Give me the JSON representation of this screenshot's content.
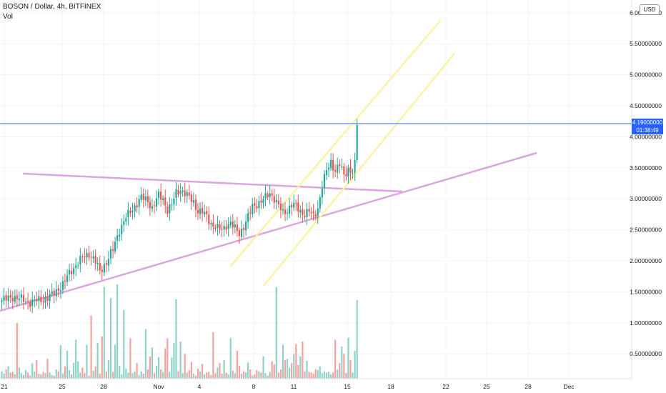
{
  "header": {
    "symbol_line": "BOSON / Dollar, 4h, BITFINEX",
    "volume_label": "Vol"
  },
  "currency_button": "USD",
  "last_price": {
    "value": "4.19000000",
    "countdown": "01:38:49"
  },
  "colors": {
    "up": "#26a69a",
    "down": "#ef5350",
    "vol_up": "#8fd3c8",
    "vol_down": "#f2a3a0",
    "horizontal_line": "#2962ff",
    "trend_lines": "#d9a6e0",
    "channel_lines": "#fbf29a"
  },
  "chart_data": {
    "type": "candlestick",
    "y_axis_labels": [
      "6.00000000",
      "5.50000000",
      "5.00000000",
      "4.50000000",
      "4.00000000",
      "3.50000000",
      "3.00000000",
      "2.50000000",
      "2.00000000",
      "1.50000000",
      "1.00000000",
      "0.50000000"
    ],
    "ylim": [
      0.0,
      6.2
    ],
    "x_axis_labels": [
      "21",
      "25",
      "28",
      "Nov",
      "4",
      "8",
      "11",
      "15",
      "18",
      "22",
      "25",
      "28",
      "Dec"
    ],
    "grid": true,
    "horizontal_line_price": 4.19,
    "price_anchors": [
      [
        0,
        1.36
      ],
      [
        5,
        1.42
      ],
      [
        9,
        1.38
      ],
      [
        13,
        1.33
      ],
      [
        17,
        1.37
      ],
      [
        21,
        1.4
      ],
      [
        24,
        1.48
      ],
      [
        28,
        1.62
      ],
      [
        31,
        1.8
      ],
      [
        34,
        1.93
      ],
      [
        37,
        2.05
      ],
      [
        40,
        2.12
      ],
      [
        43,
        1.98
      ],
      [
        45,
        1.83
      ],
      [
        48,
        1.98
      ],
      [
        51,
        2.18
      ],
      [
        54,
        2.5
      ],
      [
        57,
        2.7
      ],
      [
        61,
        2.88
      ],
      [
        64,
        3.02
      ],
      [
        67,
        2.97
      ],
      [
        69,
        2.85
      ],
      [
        72,
        3.05
      ],
      [
        74,
        3.0
      ],
      [
        76,
        2.82
      ],
      [
        78,
        2.9
      ],
      [
        80,
        3.1
      ],
      [
        82,
        3.15
      ],
      [
        85,
        3.05
      ],
      [
        88,
        2.95
      ],
      [
        90,
        2.8
      ],
      [
        92,
        2.78
      ],
      [
        94,
        2.72
      ],
      [
        96,
        2.6
      ],
      [
        99,
        2.52
      ],
      [
        101,
        2.5
      ],
      [
        103,
        2.58
      ],
      [
        105,
        2.6
      ],
      [
        107,
        2.52
      ],
      [
        109,
        2.45
      ],
      [
        111,
        2.55
      ],
      [
        113,
        2.7
      ],
      [
        115,
        2.88
      ],
      [
        117,
        2.92
      ],
      [
        119,
        2.95
      ],
      [
        121,
        3.02
      ],
      [
        123,
        3.1
      ],
      [
        125,
        3.0
      ],
      [
        127,
        2.88
      ],
      [
        129,
        2.78
      ],
      [
        131,
        2.82
      ],
      [
        133,
        2.9
      ],
      [
        135,
        2.88
      ],
      [
        137,
        2.8
      ],
      [
        139,
        2.75
      ],
      [
        141,
        2.8
      ],
      [
        143,
        2.72
      ],
      [
        145,
        2.85
      ],
      [
        147,
        3.2
      ],
      [
        149,
        3.45
      ],
      [
        151,
        3.6
      ],
      [
        153,
        3.45
      ],
      [
        155,
        3.55
      ],
      [
        157,
        3.38
      ],
      [
        159,
        3.48
      ],
      [
        161,
        3.42
      ],
      [
        162,
        3.55
      ],
      [
        163,
        4.19
      ]
    ],
    "volume": [
      0.12,
      0.08,
      0.15,
      0.2,
      0.1,
      0.11,
      0.07,
      0.9,
      0.18,
      0.09,
      0.06,
      0.14,
      0.1,
      0.05,
      0.25,
      0.12,
      0.3,
      0.08,
      0.07,
      0.11,
      0.09,
      0.32,
      0.1,
      0.06,
      0.05,
      0.15,
      0.12,
      0.54,
      0.08,
      0.2,
      0.45,
      0.14,
      0.07,
      0.26,
      0.63,
      0.28,
      0.1,
      0.18,
      0.09,
      0.55,
      0.05,
      1.02,
      0.13,
      0.2,
      0.58,
      0.08,
      0.68,
      1.48,
      0.12,
      0.3,
      1.3,
      0.11,
      0.55,
      1.52,
      0.21,
      0.07,
      1.11,
      0.16,
      0.1,
      0.65,
      0.09,
      0.12,
      0.25,
      0.06,
      0.12,
      0.08,
      0.8,
      0.15,
      0.36,
      0.5,
      0.09,
      0.21,
      0.35,
      0.15,
      0.11,
      0.49,
      0.65,
      0.11,
      0.34,
      0.58,
      1.28,
      0.12,
      0.6,
      0.09,
      0.4,
      0.1,
      0.14,
      0.27,
      0.08,
      0.05,
      0.16,
      0.12,
      0.24,
      0.07,
      0.1,
      0.11,
      0.06,
      0.75,
      0.09,
      0.18,
      0.25,
      0.08,
      0.3,
      0.1,
      0.07,
      0.66,
      0.13,
      0.09,
      0.45,
      0.21,
      0.08,
      0.12,
      0.1,
      0.26,
      0.15,
      0.05,
      0.07,
      0.14,
      0.12,
      0.1,
      0.36,
      0.09,
      0.05,
      0.11,
      0.28,
      0.23,
      1.48,
      0.1,
      0.15,
      0.55,
      0.3,
      0.32,
      0.18,
      0.25,
      0.4,
      0.56,
      0.22,
      0.36,
      0.6,
      0.12,
      0.29,
      0.11,
      0.1,
      0.08,
      0.15,
      0.14,
      0.2,
      0.09,
      0.12,
      0.1,
      0.11,
      0.07,
      0.1,
      0.63,
      0.15,
      0.25,
      0.52,
      0.4,
      0.09,
      0.66,
      0.3,
      0.1,
      0.45,
      1.27
    ]
  }
}
